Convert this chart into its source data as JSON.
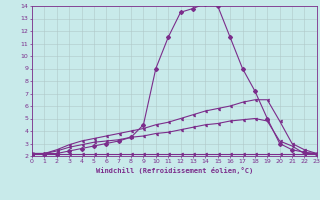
{
  "background_color": "#c8eaea",
  "line_color": "#7b2d8b",
  "grid_color": "#b0c8c8",
  "axis_color": "#7b2d8b",
  "xlabel": "Windchill (Refroidissement éolien,°C)",
  "xlim": [
    0,
    23
  ],
  "ylim": [
    2,
    14
  ],
  "yticks": [
    2,
    3,
    4,
    5,
    6,
    7,
    8,
    9,
    10,
    11,
    12,
    13,
    14
  ],
  "xticks": [
    0,
    1,
    2,
    3,
    4,
    5,
    6,
    7,
    8,
    9,
    10,
    11,
    12,
    13,
    14,
    15,
    16,
    17,
    18,
    19,
    20,
    21,
    22,
    23
  ],
  "curve1_x": [
    0,
    1,
    2,
    3,
    4,
    5,
    6,
    7,
    8,
    9,
    10,
    11,
    12,
    13,
    14,
    15,
    16,
    17,
    18,
    19,
    20,
    21,
    22,
    23
  ],
  "curve1_y": [
    2.2,
    2.2,
    2.2,
    2.2,
    2.2,
    2.2,
    2.2,
    2.2,
    2.2,
    2.2,
    2.2,
    2.2,
    2.2,
    2.2,
    2.2,
    2.2,
    2.2,
    2.2,
    2.2,
    2.2,
    2.2,
    2.2,
    2.2,
    2.2
  ],
  "curve2_x": [
    0,
    1,
    2,
    3,
    4,
    5,
    6,
    7,
    8,
    9,
    10,
    11,
    12,
    13,
    14,
    15,
    16,
    17,
    18,
    19,
    20,
    21,
    22,
    23
  ],
  "curve2_y": [
    2.2,
    2.2,
    2.4,
    2.7,
    2.9,
    3.1,
    3.2,
    3.3,
    3.5,
    3.6,
    3.8,
    3.9,
    4.1,
    4.3,
    4.5,
    4.6,
    4.8,
    4.9,
    5.0,
    4.8,
    3.2,
    2.8,
    2.2,
    2.2
  ],
  "curve3_x": [
    0,
    1,
    2,
    3,
    4,
    5,
    6,
    7,
    8,
    9,
    10,
    11,
    12,
    13,
    14,
    15,
    16,
    17,
    18,
    19,
    20,
    21,
    22,
    23
  ],
  "curve3_y": [
    2.2,
    2.2,
    2.5,
    2.9,
    3.2,
    3.4,
    3.6,
    3.8,
    4.0,
    4.2,
    4.5,
    4.7,
    5.0,
    5.3,
    5.6,
    5.8,
    6.0,
    6.3,
    6.5,
    6.5,
    4.8,
    3.0,
    2.5,
    2.2
  ],
  "curve4_x": [
    0,
    1,
    2,
    3,
    4,
    5,
    6,
    7,
    8,
    9,
    10,
    11,
    12,
    13,
    14,
    15,
    16,
    17,
    18,
    19,
    20,
    21,
    22,
    23
  ],
  "curve4_y": [
    2.2,
    2.2,
    2.2,
    2.4,
    2.6,
    2.8,
    3.0,
    3.2,
    3.5,
    4.5,
    9.0,
    11.5,
    13.5,
    13.8,
    14.2,
    14.0,
    11.5,
    9.0,
    7.2,
    5.0,
    3.0,
    2.5,
    2.3,
    2.2
  ]
}
